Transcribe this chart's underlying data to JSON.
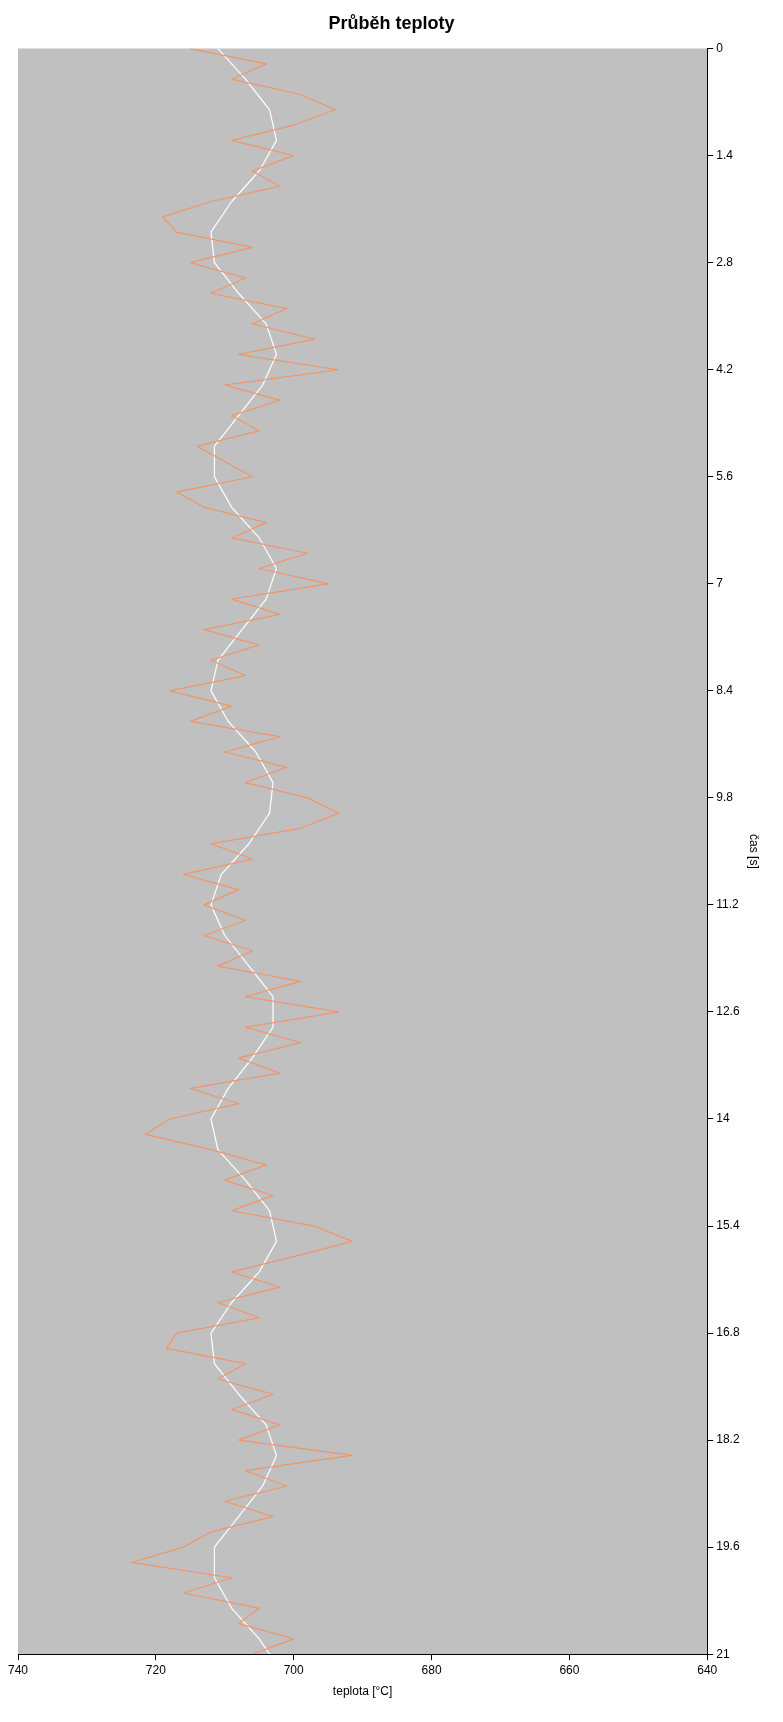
{
  "chart_data": {
    "type": "line",
    "title": "Průběh teploty",
    "xlabel": "teplota [°C]",
    "ylabel": "čas [s]",
    "xlim": [
      740,
      640
    ],
    "xticks": [
      640,
      660,
      680,
      700,
      720,
      740
    ],
    "ylim": [
      21,
      0
    ],
    "yticks": [
      0,
      1.4,
      2.8,
      4.2,
      5.6,
      7,
      8.4,
      9.8,
      11.2,
      12.6,
      14,
      15.4,
      16.8,
      18.2,
      19.6,
      21
    ],
    "marker": "none",
    "legend": false,
    "series": [
      {
        "color": "#f0956a",
        "values": [
          0,
          0.2,
          0.4,
          0.6,
          0.8,
          1,
          1.2,
          1.4,
          1.6,
          1.8,
          2,
          2.2,
          2.4,
          2.6,
          2.8,
          3,
          3.2,
          3.4,
          3.6,
          3.8,
          4,
          4.2,
          4.4,
          4.6,
          4.8,
          5,
          5.2,
          5.4,
          5.6,
          5.8,
          6,
          6.2,
          6.4,
          6.6,
          6.8,
          7,
          7.2,
          7.4,
          7.6,
          7.8,
          8,
          8.2,
          8.4,
          8.6,
          8.8,
          9,
          9.2,
          9.4,
          9.6,
          9.8,
          10,
          10.2,
          10.4,
          10.6,
          10.8,
          11,
          11.2,
          11.4,
          11.6,
          11.8,
          12,
          12.2,
          12.4,
          12.6,
          12.8,
          13,
          13.2,
          13.4,
          13.6,
          13.8,
          14,
          14.2,
          14.4,
          14.6,
          14.8,
          15,
          15.2,
          15.4,
          15.6,
          15.8,
          16,
          16.2,
          16.4,
          16.6,
          16.8,
          17,
          17.2,
          17.4,
          17.6,
          17.8,
          18,
          18.2,
          18.4,
          18.6,
          18.8,
          19,
          19.2,
          19.4,
          19.6,
          19.8,
          20,
          20.2,
          20.4,
          20.6,
          20.8,
          21
        ],
        "x": [
          715,
          704,
          709,
          699,
          694,
          700,
          709,
          700,
          706,
          702,
          712,
          719,
          717,
          706,
          715,
          707,
          712,
          701,
          706,
          697,
          708,
          693.5,
          710,
          702,
          709,
          705,
          714,
          710,
          706,
          717,
          713,
          704,
          709,
          698,
          705,
          695,
          709,
          702,
          713,
          705,
          712,
          707,
          718,
          709,
          715,
          702,
          710,
          701,
          707,
          698,
          693.5,
          699,
          712,
          706,
          716,
          708,
          713,
          707,
          713,
          706,
          711,
          699,
          707,
          693.5,
          707,
          699,
          708,
          702,
          715,
          708,
          718,
          721.5,
          712,
          704,
          710,
          703,
          709,
          697,
          691.5,
          700,
          709,
          702,
          711,
          705,
          717,
          718.5,
          707,
          711,
          703,
          709,
          702,
          708,
          691.5,
          707,
          701,
          710,
          703,
          712,
          716,
          723.5,
          709,
          716,
          705,
          708,
          700,
          706
        ]
      },
      {
        "color": "#ffffff",
        "values": [
          0,
          0.4,
          0.8,
          1.2,
          1.6,
          2,
          2.4,
          2.8,
          3.2,
          3.6,
          4,
          4.4,
          4.8,
          5.2,
          5.6,
          6,
          6.4,
          6.8,
          7.2,
          7.6,
          8,
          8.4,
          8.8,
          9.2,
          9.6,
          10,
          10.4,
          10.8,
          11.2,
          11.6,
          12,
          12.4,
          12.8,
          13.2,
          13.6,
          14,
          14.4,
          14.8,
          15.2,
          15.6,
          16,
          16.4,
          16.8,
          17.2,
          17.6,
          18,
          18.4,
          18.8,
          19.2,
          19.6,
          20,
          20.4,
          20.8,
          21
        ],
        "x": [
          711,
          707,
          703.5,
          702.5,
          705,
          709,
          712,
          711.5,
          708,
          704,
          702.5,
          704.5,
          708,
          711.5,
          711.5,
          709,
          705,
          702.5,
          704,
          707.5,
          711,
          712,
          709.5,
          705.5,
          703,
          703.5,
          706.5,
          710.5,
          712,
          710,
          706.5,
          703,
          703,
          706,
          709.5,
          712,
          711,
          707,
          703.5,
          702.5,
          705,
          709,
          712,
          711.5,
          708,
          704,
          702.5,
          704.5,
          708,
          711.5,
          711.5,
          709,
          705,
          703.5
        ]
      }
    ]
  }
}
